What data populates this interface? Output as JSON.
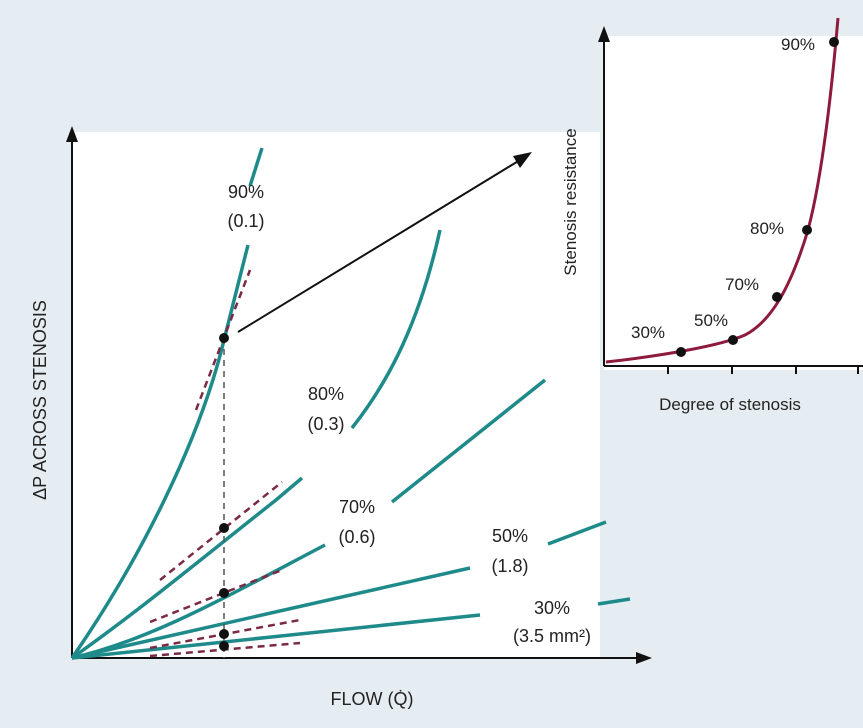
{
  "main_plot": {
    "y_axis_label": "ΔP ACROSS STENOSIS",
    "x_axis_label": "FLOW (Q̇)",
    "curves": [
      {
        "percent": "90%",
        "value": "(0.1)"
      },
      {
        "percent": "80%",
        "value": "(0.3)"
      },
      {
        "percent": "70%",
        "value": "(0.6)"
      },
      {
        "percent": "50%",
        "value": "(1.8)"
      },
      {
        "percent": "30%",
        "value": "(3.5 mm²)"
      }
    ]
  },
  "inset": {
    "y_axis_label": "Stenosis resistance",
    "x_axis_label": "Degree of stenosis",
    "points": [
      {
        "label": "30%"
      },
      {
        "label": "50%"
      },
      {
        "label": "70%"
      },
      {
        "label": "80%"
      },
      {
        "label": "90%"
      }
    ]
  },
  "colors": {
    "background": "#e6edf2",
    "panel": "#ffffff",
    "curve": "#1f8a8a",
    "tangent": "#7a2a44",
    "inset_curve": "#8e1a3c"
  }
}
